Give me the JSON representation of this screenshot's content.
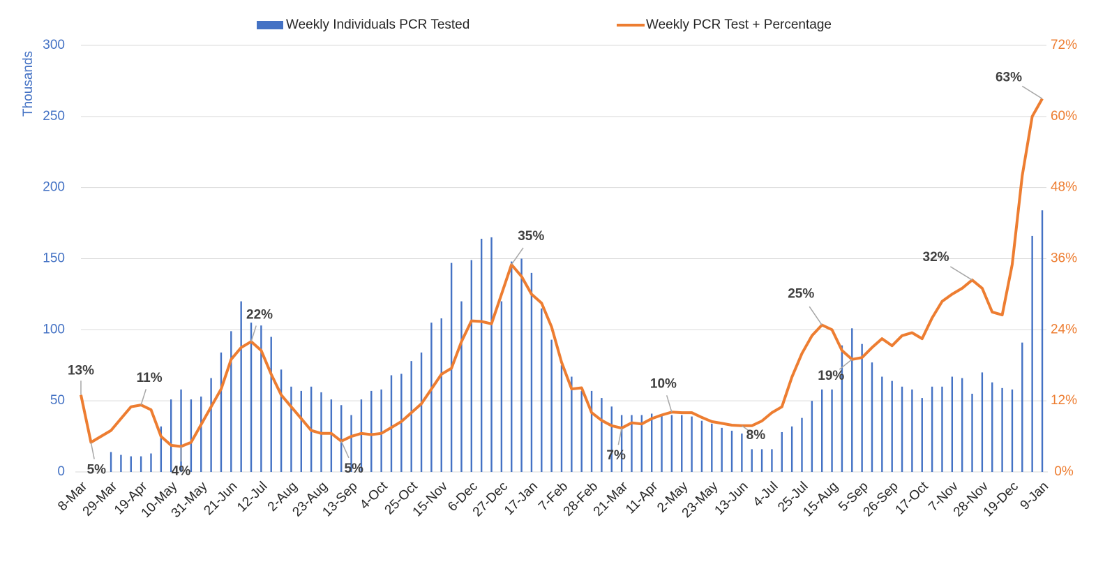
{
  "chart_data": {
    "type": "bar_line",
    "y_axis_title": "Thousands",
    "categories": [
      "8-Mar",
      null,
      null,
      "29-Mar",
      null,
      null,
      "19-Apr",
      null,
      null,
      "10-May",
      null,
      null,
      "31-May",
      null,
      null,
      "21-Jun",
      null,
      null,
      "12-Jul",
      null,
      null,
      "2-Aug",
      null,
      null,
      "23-Aug",
      null,
      null,
      "13-Sep",
      null,
      null,
      "4-Oct",
      null,
      null,
      "25-Oct",
      null,
      null,
      "15-Nov",
      null,
      null,
      "6-Dec",
      null,
      null,
      "27-Dec",
      null,
      null,
      "17-Jan",
      null,
      null,
      "7-Feb",
      null,
      null,
      "28-Feb",
      null,
      null,
      "21-Mar",
      null,
      null,
      "11-Apr",
      null,
      null,
      "2-May",
      null,
      null,
      "23-May",
      null,
      null,
      "13-Jun",
      null,
      null,
      "4-Jul",
      null,
      null,
      "25-Jul",
      null,
      null,
      "15-Aug",
      null,
      null,
      "5-Sep",
      null,
      null,
      "26-Sep",
      null,
      null,
      "17-Oct",
      null,
      null,
      "7-Nov",
      null,
      null,
      "28-Nov",
      null,
      null,
      "19-Dec",
      null,
      null,
      "9-Jan"
    ],
    "ylim": [
      0,
      300
    ],
    "yticks": [
      0,
      50,
      100,
      150,
      200,
      250,
      300
    ],
    "y2lim": [
      0,
      72
    ],
    "y2ticks": [
      {
        "value": 0,
        "label": "0%"
      },
      {
        "value": 12,
        "label": "12%"
      },
      {
        "value": 24,
        "label": "24%"
      },
      {
        "value": 36,
        "label": "36%"
      },
      {
        "value": 48,
        "label": "48%"
      },
      {
        "value": 60,
        "label": "60%"
      },
      {
        "value": 72,
        "label": "72%"
      }
    ],
    "grid": true,
    "series": [
      {
        "name": "Weekly Individuals PCR Tested",
        "type": "bar",
        "color": "#4472c4",
        "values": [
          0,
          0,
          0,
          14,
          12,
          11,
          11,
          13,
          32,
          51,
          58,
          51,
          53,
          66,
          84,
          99,
          120,
          105,
          103,
          95,
          72,
          60,
          57,
          60,
          56,
          51,
          47,
          40,
          51,
          57,
          58,
          68,
          69,
          78,
          84,
          105,
          108,
          147,
          120,
          149,
          164,
          165,
          120,
          148,
          150,
          140,
          115,
          93,
          75,
          67,
          57,
          57,
          52,
          46,
          40,
          40,
          40,
          41,
          40,
          40,
          40,
          39,
          36,
          34,
          31,
          29,
          27,
          16,
          16,
          16,
          28,
          32,
          38,
          50,
          58,
          58,
          89,
          101,
          90,
          77,
          67,
          64,
          60,
          58,
          52,
          60,
          60,
          67,
          66,
          55,
          70,
          63,
          59,
          58,
          91,
          166,
          184
        ]
      },
      {
        "name": "Weekly PCR Test + Percentage",
        "type": "line",
        "axis": "y2",
        "color": "#ed7d31",
        "values": [
          13,
          5,
          6,
          7,
          9,
          11,
          11.3,
          10.5,
          6,
          4.5,
          4.3,
          5,
          8,
          11,
          14,
          19,
          21,
          22,
          20.5,
          16.5,
          13,
          11,
          9,
          7,
          6.5,
          6.5,
          5.2,
          6,
          6.5,
          6.3,
          6.5,
          7.5,
          8.5,
          10,
          11.5,
          14,
          16.5,
          17.5,
          22,
          25.5,
          25.4,
          25,
          30,
          35,
          33,
          30,
          28.5,
          24.5,
          18.5,
          14,
          14.2,
          10,
          8.7,
          7.8,
          7.4,
          8.3,
          8.1,
          9,
          9.6,
          10.1,
          10,
          10,
          9.2,
          8.5,
          8.2,
          7.9,
          7.8,
          7.8,
          8.6,
          10,
          11,
          16,
          20,
          23,
          24.8,
          24,
          20.5,
          19,
          19.3,
          21,
          22.5,
          21.3,
          23,
          23.5,
          22.5,
          26,
          28.8,
          30,
          31,
          32.4,
          31,
          27,
          26.5,
          35,
          50,
          60,
          63
        ],
        "value_labels": [
          "13%",
          "5%",
          null,
          null,
          null,
          null,
          "11%",
          null,
          null,
          null,
          "4%",
          null,
          null,
          null,
          null,
          null,
          null,
          "22%",
          null,
          null,
          null,
          null,
          null,
          null,
          null,
          null,
          "5%",
          null,
          null,
          null,
          null,
          null,
          null,
          null,
          null,
          null,
          null,
          null,
          null,
          null,
          null,
          null,
          null,
          "35%",
          null,
          null,
          null,
          null,
          null,
          null,
          null,
          null,
          null,
          null,
          "7%",
          null,
          null,
          null,
          null,
          "10%",
          null,
          null,
          null,
          null,
          null,
          null,
          "8%",
          null,
          null,
          null,
          null,
          null,
          null,
          null,
          "25%",
          null,
          null,
          "19%",
          null,
          null,
          null,
          null,
          null,
          null,
          null,
          null,
          null,
          null,
          null,
          "32%",
          null,
          null,
          null,
          null,
          null,
          null,
          "63%"
        ]
      }
    ]
  }
}
